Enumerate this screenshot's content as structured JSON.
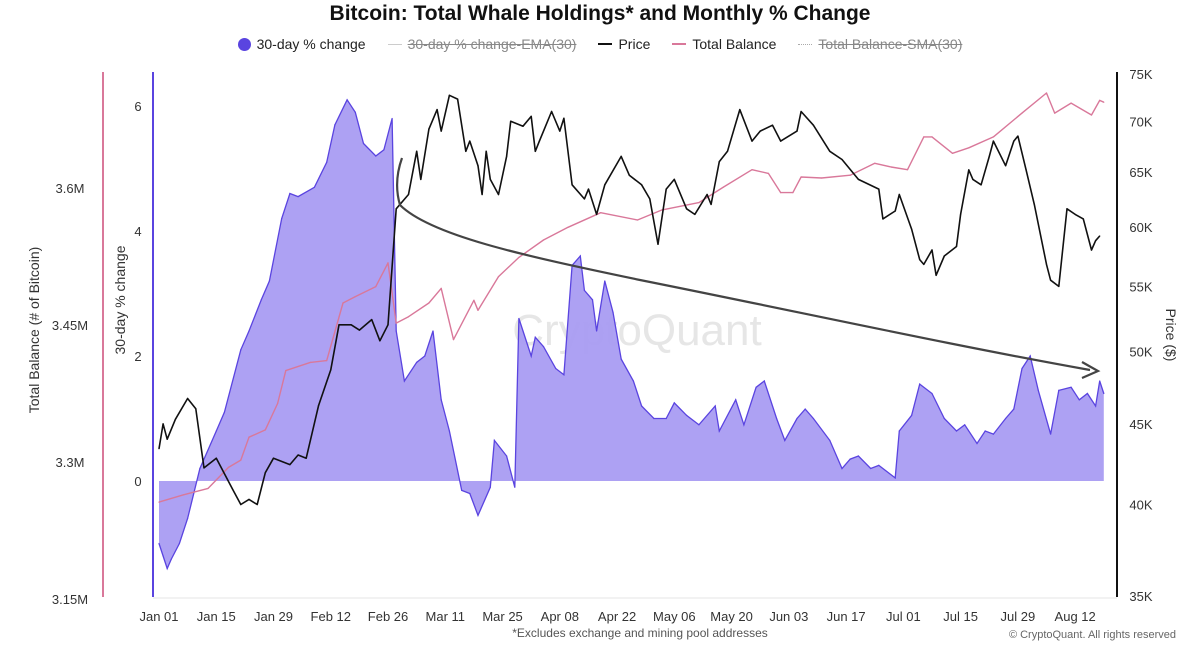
{
  "chart_data": {
    "type": "area+line",
    "title": "Bitcoin: Total Whale Holdings* and Monthly % Change",
    "footnote": "*Excludes exchange and mining pool addresses",
    "copyright": "© CryptoQuant. All rights reserved",
    "watermark": "CryptoQuant",
    "legend": [
      {
        "label": "30-day % change",
        "color": "#5a44e0",
        "marker": "dot",
        "hidden": false
      },
      {
        "label": "30-day % change-EMA(30)",
        "color": "#cccccc",
        "marker": "line",
        "hidden": true
      },
      {
        "label": "Price",
        "color": "#111111",
        "marker": "line",
        "hidden": false
      },
      {
        "label": "Total Balance",
        "color": "#d9789a",
        "marker": "line",
        "hidden": false
      },
      {
        "label": "Total Balance-SMA(30)",
        "color": "#cccccc",
        "marker": "dotted",
        "hidden": true
      }
    ],
    "legend_position": "top",
    "grid": false,
    "x_axis": {
      "ticks": [
        "Jan 01",
        "Jan 15",
        "Jan 29",
        "Feb 12",
        "Feb 26",
        "Mar 11",
        "Mar 25",
        "Apr 08",
        "Apr 22",
        "May 06",
        "May 20",
        "Jun 03",
        "Jun 17",
        "Jul 01",
        "Jul 15",
        "Jul 29",
        "Aug 12"
      ]
    },
    "y_axes": {
      "balance": {
        "label": "Total Balance (# of Bitcoin)",
        "ticks": [
          "3.15M",
          "3.3M",
          "3.45M",
          "3.6M"
        ],
        "range": [
          3.15,
          3.7
        ],
        "color": "#d9789a"
      },
      "pct": {
        "label": "30-day % change",
        "ticks": [
          "0",
          "2",
          "4",
          "6"
        ],
        "range": [
          -1.75,
          6.5
        ],
        "color": "#5a44e0"
      },
      "price": {
        "label": "Price ($)",
        "ticks": [
          "35K",
          "40K",
          "45K",
          "50K",
          "55K",
          "60K",
          "65K",
          "70K",
          "75K"
        ],
        "range": [
          35000,
          75000
        ],
        "scale": "log",
        "color": "#111111"
      }
    },
    "series": [
      {
        "name": "30-day % change",
        "axis": "pct",
        "kind": "area",
        "fill": "#a99cf2",
        "stroke": "#5a44e0",
        "points": [
          [
            "Jan 01",
            -1.0
          ],
          [
            "Jan 02",
            -1.2
          ],
          [
            "Jan 03",
            -1.4
          ],
          [
            "Jan 04",
            -1.25
          ],
          [
            "Jan 06",
            -1.0
          ],
          [
            "Jan 08",
            -0.6
          ],
          [
            "Jan 11",
            0.2
          ],
          [
            "Jan 15",
            0.8
          ],
          [
            "Jan 17",
            1.1
          ],
          [
            "Jan 21",
            2.1
          ],
          [
            "Jan 23",
            2.4
          ],
          [
            "Jan 26",
            2.9
          ],
          [
            "Jan 28",
            3.2
          ],
          [
            "Jan 31",
            4.2
          ],
          [
            "Feb 02",
            4.6
          ],
          [
            "Feb 04",
            4.55
          ],
          [
            "Feb 08",
            4.7
          ],
          [
            "Feb 11",
            5.1
          ],
          [
            "Feb 13",
            5.7
          ],
          [
            "Feb 16",
            6.1
          ],
          [
            "Feb 18",
            5.9
          ],
          [
            "Feb 20",
            5.4
          ],
          [
            "Feb 23",
            5.2
          ],
          [
            "Feb 25",
            5.3
          ],
          [
            "Feb 27",
            5.8
          ],
          [
            "Feb 28",
            2.4
          ],
          [
            "Mar 01",
            1.6
          ],
          [
            "Mar 04",
            1.9
          ],
          [
            "Mar 06",
            2.0
          ],
          [
            "Mar 08",
            2.4
          ],
          [
            "Mar 10",
            1.3
          ],
          [
            "Mar 12",
            0.8
          ],
          [
            "Mar 15",
            -0.15
          ],
          [
            "Mar 17",
            -0.2
          ],
          [
            "Mar 19",
            -0.55
          ],
          [
            "Mar 22",
            -0.1
          ],
          [
            "Mar 23",
            0.65
          ],
          [
            "Mar 26",
            0.4
          ],
          [
            "Mar 28",
            -0.1
          ],
          [
            "Mar 29",
            2.6
          ],
          [
            "Apr 01",
            2.0
          ],
          [
            "Apr 02",
            2.3
          ],
          [
            "Apr 04",
            2.15
          ],
          [
            "Apr 07",
            1.8
          ],
          [
            "Apr 09",
            1.7
          ],
          [
            "Apr 11",
            3.45
          ],
          [
            "Apr 13",
            3.6
          ],
          [
            "Apr 14",
            3.05
          ],
          [
            "Apr 16",
            2.9
          ],
          [
            "Apr 17",
            2.4
          ],
          [
            "Apr 19",
            3.2
          ],
          [
            "Apr 21",
            2.7
          ],
          [
            "Apr 23",
            1.95
          ],
          [
            "Apr 26",
            1.6
          ],
          [
            "Apr 28",
            1.2
          ],
          [
            "May 01",
            1.0
          ],
          [
            "May 04",
            1.0
          ],
          [
            "May 06",
            1.25
          ],
          [
            "May 09",
            1.05
          ],
          [
            "May 12",
            0.9
          ],
          [
            "May 16",
            1.2
          ],
          [
            "May 17",
            0.8
          ],
          [
            "May 21",
            1.3
          ],
          [
            "May 23",
            0.9
          ],
          [
            "May 26",
            1.5
          ],
          [
            "May 28",
            1.6
          ],
          [
            "May 31",
            1.0
          ],
          [
            "Jun 02",
            0.65
          ],
          [
            "Jun 05",
            1.0
          ],
          [
            "Jun 07",
            1.15
          ],
          [
            "Jun 09",
            1.0
          ],
          [
            "Jun 13",
            0.65
          ],
          [
            "Jun 16",
            0.2
          ],
          [
            "Jun 18",
            0.35
          ],
          [
            "Jun 20",
            0.4
          ],
          [
            "Jun 23",
            0.2
          ],
          [
            "Jun 25",
            0.25
          ],
          [
            "Jun 29",
            0.05
          ],
          [
            "Jun 30",
            0.8
          ],
          [
            "Jul 03",
            1.05
          ],
          [
            "Jul 05",
            1.55
          ],
          [
            "Jul 08",
            1.4
          ],
          [
            "Jul 11",
            1.0
          ],
          [
            "Jul 14",
            0.8
          ],
          [
            "Jul 16",
            0.9
          ],
          [
            "Jul 19",
            0.6
          ],
          [
            "Jul 21",
            0.8
          ],
          [
            "Jul 23",
            0.75
          ],
          [
            "Jul 26",
            1.0
          ],
          [
            "Jul 28",
            1.15
          ],
          [
            "Jul 30",
            1.8
          ],
          [
            "Aug 01",
            2.0
          ],
          [
            "Aug 03",
            1.45
          ],
          [
            "Aug 06",
            0.75
          ],
          [
            "Aug 08",
            1.45
          ],
          [
            "Aug 11",
            1.5
          ],
          [
            "Aug 13",
            1.3
          ],
          [
            "Aug 15",
            1.4
          ],
          [
            "Aug 17",
            1.2
          ],
          [
            "Aug 18",
            1.6
          ],
          [
            "Aug 19",
            1.4
          ]
        ]
      },
      {
        "name": "Price",
        "axis": "price",
        "kind": "line",
        "stroke": "#111111",
        "points": [
          [
            "Jan 01",
            43400
          ],
          [
            "Jan 02",
            45000
          ],
          [
            "Jan 03",
            44000
          ],
          [
            "Jan 05",
            45300
          ],
          [
            "Jan 08",
            46700
          ],
          [
            "Jan 10",
            46000
          ],
          [
            "Jan 12",
            42200
          ],
          [
            "Jan 15",
            42800
          ],
          [
            "Jan 19",
            40900
          ],
          [
            "Jan 21",
            40000
          ],
          [
            "Jan 23",
            40300
          ],
          [
            "Jan 25",
            40000
          ],
          [
            "Jan 27",
            41900
          ],
          [
            "Jan 29",
            42800
          ],
          [
            "Feb 02",
            42400
          ],
          [
            "Feb 04",
            43000
          ],
          [
            "Feb 06",
            42800
          ],
          [
            "Feb 09",
            46200
          ],
          [
            "Feb 12",
            48700
          ],
          [
            "Feb 14",
            52000
          ],
          [
            "Feb 17",
            52000
          ],
          [
            "Feb 19",
            51600
          ],
          [
            "Feb 22",
            52400
          ],
          [
            "Feb 24",
            50800
          ],
          [
            "Feb 26",
            52000
          ],
          [
            "Feb 28",
            61600
          ],
          [
            "Mar 02",
            62900
          ],
          [
            "Mar 04",
            67000
          ],
          [
            "Mar 05",
            64300
          ],
          [
            "Mar 07",
            69200
          ],
          [
            "Mar 09",
            71200
          ],
          [
            "Mar 10",
            69000
          ],
          [
            "Mar 12",
            72700
          ],
          [
            "Mar 14",
            72300
          ],
          [
            "Mar 16",
            67000
          ],
          [
            "Mar 17",
            68000
          ],
          [
            "Mar 19",
            65600
          ],
          [
            "Mar 20",
            62900
          ],
          [
            "Mar 21",
            67000
          ],
          [
            "Mar 22",
            64300
          ],
          [
            "Mar 24",
            62900
          ],
          [
            "Mar 26",
            66500
          ],
          [
            "Mar 27",
            70000
          ],
          [
            "Mar 30",
            69500
          ],
          [
            "Apr 01",
            70500
          ],
          [
            "Apr 02",
            67000
          ],
          [
            "Apr 03",
            68000
          ],
          [
            "Apr 06",
            71000
          ],
          [
            "Apr 08",
            69000
          ],
          [
            "Apr 09",
            70300
          ],
          [
            "Apr 11",
            63800
          ],
          [
            "Apr 14",
            62500
          ],
          [
            "Apr 15",
            63400
          ],
          [
            "Apr 17",
            61100
          ],
          [
            "Apr 19",
            63800
          ],
          [
            "Apr 23",
            66500
          ],
          [
            "Apr 25",
            64700
          ],
          [
            "Apr 28",
            63800
          ],
          [
            "Apr 30",
            62500
          ],
          [
            "May 02",
            58500
          ],
          [
            "May 04",
            63400
          ],
          [
            "May 06",
            64300
          ],
          [
            "May 09",
            61600
          ],
          [
            "May 11",
            61100
          ],
          [
            "May 14",
            62900
          ],
          [
            "May 15",
            62000
          ],
          [
            "May 17",
            66000
          ],
          [
            "May 19",
            67000
          ],
          [
            "May 22",
            71200
          ],
          [
            "May 25",
            68000
          ],
          [
            "May 27",
            69000
          ],
          [
            "May 30",
            69600
          ],
          [
            "Jun 01",
            68000
          ],
          [
            "Jun 05",
            69000
          ],
          [
            "Jun 06",
            71000
          ],
          [
            "Jun 09",
            69600
          ],
          [
            "Jun 13",
            67000
          ],
          [
            "Jun 16",
            66200
          ],
          [
            "Jun 20",
            64300
          ],
          [
            "Jun 25",
            63400
          ],
          [
            "Jun 26",
            60700
          ],
          [
            "Jun 29",
            61400
          ],
          [
            "Jun 30",
            62900
          ],
          [
            "Jul 03",
            59800
          ],
          [
            "Jul 05",
            57200
          ],
          [
            "Jul 06",
            56800
          ],
          [
            "Jul 08",
            58000
          ],
          [
            "Jul 09",
            55900
          ],
          [
            "Jul 11",
            57500
          ],
          [
            "Jul 14",
            58300
          ],
          [
            "Jul 15",
            61100
          ],
          [
            "Jul 17",
            65200
          ],
          [
            "Jul 18",
            64300
          ],
          [
            "Jul 20",
            63800
          ],
          [
            "Jul 22",
            66500
          ],
          [
            "Jul 23",
            68000
          ],
          [
            "Jul 26",
            65600
          ],
          [
            "Jul 28",
            68000
          ],
          [
            "Jul 29",
            68500
          ],
          [
            "Jul 31",
            65200
          ],
          [
            "Aug 02",
            62000
          ],
          [
            "Aug 05",
            56800
          ],
          [
            "Aug 06",
            55500
          ],
          [
            "Aug 08",
            55000
          ],
          [
            "Aug 10",
            61600
          ],
          [
            "Aug 12",
            61100
          ],
          [
            "Aug 14",
            60700
          ],
          [
            "Aug 16",
            58000
          ],
          [
            "Aug 17",
            58800
          ],
          [
            "Aug 18",
            59200
          ]
        ]
      },
      {
        "name": "Total Balance",
        "axis": "balance",
        "kind": "line",
        "stroke": "#d9789a",
        "points": [
          [
            "Jan 01",
            3.256
          ],
          [
            "Jan 07",
            3.264
          ],
          [
            "Jan 13",
            3.271
          ],
          [
            "Jan 18",
            3.294
          ],
          [
            "Jan 21",
            3.302
          ],
          [
            "Jan 23",
            3.327
          ],
          [
            "Jan 27",
            3.335
          ],
          [
            "Jan 30",
            3.364
          ],
          [
            "Feb 01",
            3.4
          ],
          [
            "Feb 07",
            3.409
          ],
          [
            "Feb 11",
            3.411
          ],
          [
            "Feb 15",
            3.474
          ],
          [
            "Feb 18",
            3.481
          ],
          [
            "Feb 23",
            3.492
          ],
          [
            "Feb 26",
            3.518
          ],
          [
            "Feb 28",
            3.452
          ],
          [
            "Mar 02",
            3.459
          ],
          [
            "Mar 07",
            3.474
          ],
          [
            "Mar 10",
            3.49
          ],
          [
            "Mar 13",
            3.434
          ],
          [
            "Mar 18",
            3.477
          ],
          [
            "Mar 19",
            3.466
          ],
          [
            "Mar 24",
            3.503
          ],
          [
            "Mar 29",
            3.524
          ],
          [
            "Apr 04",
            3.543
          ],
          [
            "Apr 10",
            3.557
          ],
          [
            "Apr 18",
            3.573
          ],
          [
            "Apr 27",
            3.565
          ],
          [
            "May 03",
            3.576
          ],
          [
            "May 12",
            3.584
          ],
          [
            "May 18",
            3.601
          ],
          [
            "May 25",
            3.62
          ],
          [
            "May 29",
            3.616
          ],
          [
            "Jun 01",
            3.595
          ],
          [
            "Jun 04",
            3.595
          ],
          [
            "Jun 06",
            3.612
          ],
          [
            "Jun 11",
            3.611
          ],
          [
            "Jun 18",
            3.614
          ],
          [
            "Jun 24",
            3.627
          ],
          [
            "Jun 28",
            3.623
          ],
          [
            "Jul 02",
            3.62
          ],
          [
            "Jul 06",
            3.656
          ],
          [
            "Jul 08",
            3.656
          ],
          [
            "Jul 13",
            3.638
          ],
          [
            "Jul 17",
            3.644
          ],
          [
            "Jul 23",
            3.656
          ],
          [
            "Jul 30",
            3.682
          ],
          [
            "Aug 05",
            3.704
          ],
          [
            "Aug 07",
            3.682
          ],
          [
            "Aug 11",
            3.693
          ],
          [
            "Aug 16",
            3.68
          ],
          [
            "Aug 18",
            3.696
          ],
          [
            "Aug 19",
            3.694
          ]
        ]
      }
    ]
  }
}
